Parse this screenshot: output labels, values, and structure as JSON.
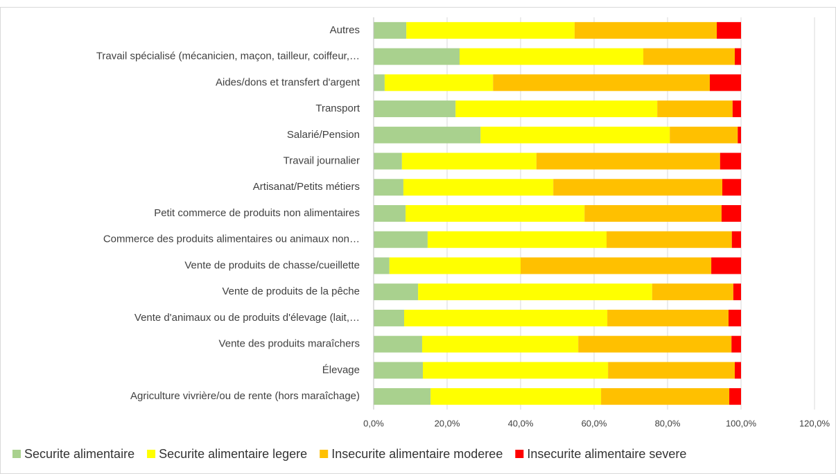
{
  "chart_data": {
    "type": "stacked-barh",
    "categories": [
      "Autres",
      "Travail spécialisé (mécanicien, maçon, tailleur, coiffeur,…",
      "Aides/dons et transfert d'argent",
      "Transport",
      "Salarié/Pension",
      "Travail journalier",
      "Artisanat/Petits métiers",
      "Petit commerce de produits non alimentaires",
      "Commerce des produits alimentaires ou animaux non…",
      "Vente de produits de chasse/cueillette",
      "Vente de produits de la pêche",
      "Vente d'animaux ou de produits d'élevage (lait,…",
      "Vente des produits maraîchers",
      "Élevage",
      "Agriculture vivrière/ou de rente  (hors maraîchage)"
    ],
    "series": [
      {
        "name": "Securite alimentaire",
        "color": "#a9d18e",
        "values": [
          8.9,
          23.4,
          3.0,
          22.3,
          29.1,
          7.7,
          8.1,
          8.7,
          14.7,
          4.3,
          12.1,
          8.3,
          13.2,
          13.4,
          15.5
        ]
      },
      {
        "name": "Securite alimentaire legere",
        "color": "#ffff00",
        "values": [
          45.8,
          50.0,
          29.5,
          54.9,
          51.5,
          36.6,
          40.8,
          48.7,
          48.7,
          35.7,
          63.7,
          55.3,
          42.5,
          50.4,
          46.4
        ]
      },
      {
        "name": "Insecurite alimentaire moderee",
        "color": "#ffc000",
        "values": [
          38.7,
          24.9,
          59.0,
          20.5,
          18.5,
          50.0,
          46.0,
          37.3,
          34.1,
          51.9,
          22.1,
          33.0,
          41.7,
          34.5,
          34.9
        ]
      },
      {
        "name": "Insecurite alimentaire severe",
        "color": "#ff0000",
        "values": [
          6.6,
          1.7,
          8.5,
          2.3,
          0.9,
          5.7,
          5.1,
          5.3,
          2.5,
          8.1,
          2.1,
          3.4,
          2.6,
          1.7,
          3.2
        ]
      }
    ],
    "xlim": [
      0,
      120
    ],
    "xticks": [
      {
        "value": 0,
        "label": "0,0%"
      },
      {
        "value": 20,
        "label": "20,0%"
      },
      {
        "value": 40,
        "label": "40,0%"
      },
      {
        "value": 60,
        "label": "60,0%"
      },
      {
        "value": 80,
        "label": "80,0%"
      },
      {
        "value": 100,
        "label": "100,0%"
      },
      {
        "value": 120,
        "label": "120,0%"
      }
    ],
    "grid": true,
    "legend": "bottom"
  }
}
